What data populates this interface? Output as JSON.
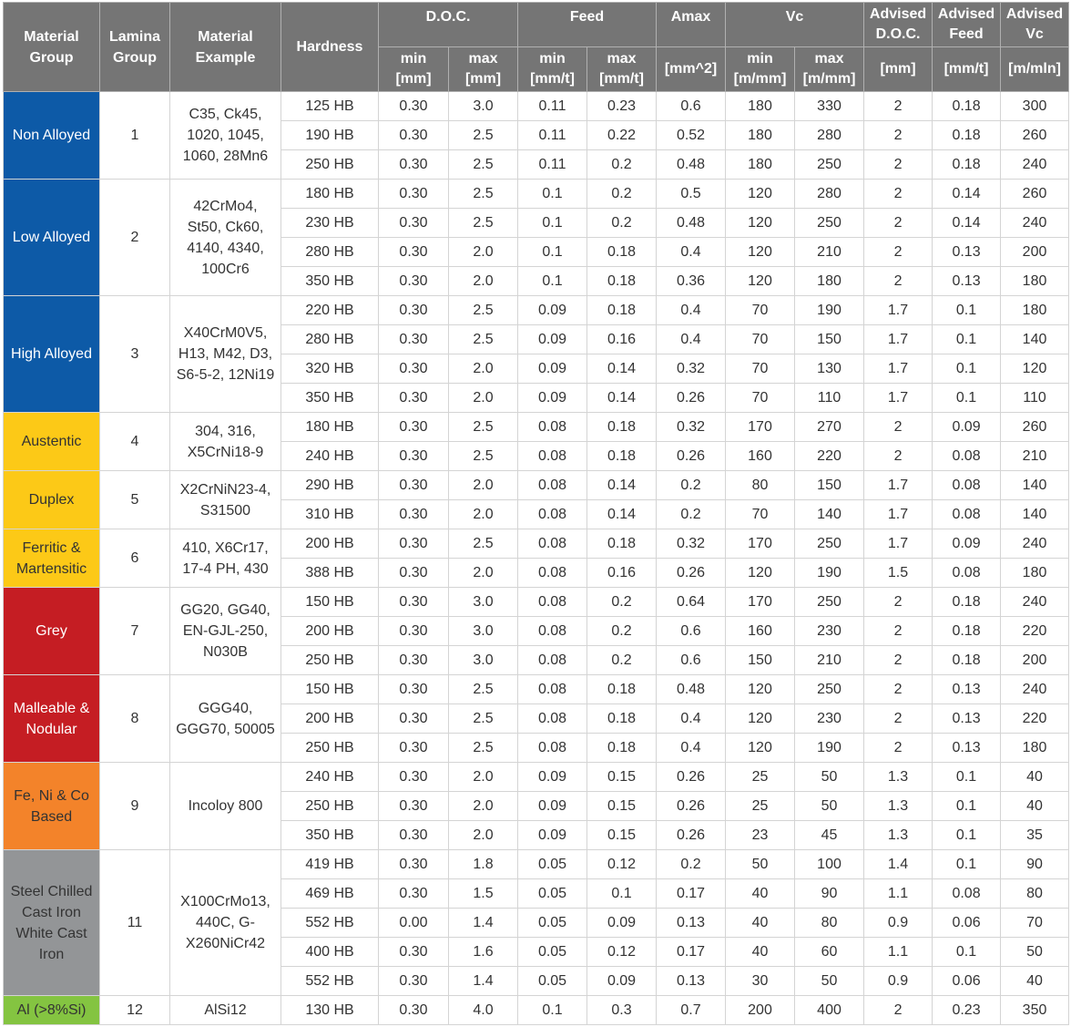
{
  "header": {
    "material_group": [
      "Material",
      "Group"
    ],
    "lamina_group": [
      "Lamina",
      "Group"
    ],
    "material_example": [
      "Material",
      "Example"
    ],
    "hardness": "Hardness",
    "doc": "D.O.C.",
    "feed": "Feed",
    "amax": "Amax",
    "vc": "Vc",
    "advised_doc": [
      "Advised",
      "D.O.C."
    ],
    "advised_feed": [
      "Advised",
      "Feed"
    ],
    "advised_vc": [
      "Advised",
      "Vc"
    ],
    "doc_min": [
      "min",
      "[mm]"
    ],
    "doc_max": [
      "max",
      "[mm]"
    ],
    "feed_min": [
      "min",
      "[mm/t]"
    ],
    "feed_max": [
      "max",
      "[mm/t]"
    ],
    "amax_unit": "[mm^2]",
    "vc_min": [
      "min",
      "[m/mm]"
    ],
    "vc_max": [
      "max",
      "[m/mm]"
    ],
    "advised_doc_unit": "[mm]",
    "advised_feed_unit": "[mm/t]",
    "advised_vc_unit": "[m/mln]"
  },
  "groups": [
    {
      "name": [
        "Non Alloyed"
      ],
      "color": "#0d5aa7",
      "text_color": "#ffffff",
      "lamina": "1",
      "example": [
        "C35, Ck45,",
        "1020, 1045,",
        "1060, 28Mn6"
      ],
      "rows": [
        [
          "125 HB",
          "0.30",
          "3.0",
          "0.11",
          "0.23",
          "0.6",
          "180",
          "330",
          "2",
          "0.18",
          "300"
        ],
        [
          "190 HB",
          "0.30",
          "2.5",
          "0.11",
          "0.22",
          "0.52",
          "180",
          "280",
          "2",
          "0.18",
          "260"
        ],
        [
          "250 HB",
          "0.30",
          "2.5",
          "0.11",
          "0.2",
          "0.48",
          "180",
          "250",
          "2",
          "0.18",
          "240"
        ]
      ]
    },
    {
      "name": [
        "Low Alloyed"
      ],
      "color": "#0d5aa7",
      "text_color": "#ffffff",
      "lamina": "2",
      "example": [
        "42CrMo4,",
        "St50, Ck60,",
        "4140, 4340,",
        "100Cr6"
      ],
      "rows": [
        [
          "180 HB",
          "0.30",
          "2.5",
          "0.1",
          "0.2",
          "0.5",
          "120",
          "280",
          "2",
          "0.14",
          "260"
        ],
        [
          "230 HB",
          "0.30",
          "2.5",
          "0.1",
          "0.2",
          "0.48",
          "120",
          "250",
          "2",
          "0.14",
          "240"
        ],
        [
          "280 HB",
          "0.30",
          "2.0",
          "0.1",
          "0.18",
          "0.4",
          "120",
          "210",
          "2",
          "0.13",
          "200"
        ],
        [
          "350 HB",
          "0.30",
          "2.0",
          "0.1",
          "0.18",
          "0.36",
          "120",
          "180",
          "2",
          "0.13",
          "180"
        ]
      ]
    },
    {
      "name": [
        "High Alloyed"
      ],
      "color": "#0d5aa7",
      "text_color": "#ffffff",
      "lamina": "3",
      "example": [
        "X40CrM0V5,",
        "H13, M42, D3,",
        "S6-5-2, 12Ni19"
      ],
      "rows": [
        [
          "220 HB",
          "0.30",
          "2.5",
          "0.09",
          "0.18",
          "0.4",
          "70",
          "190",
          "1.7",
          "0.1",
          "180"
        ],
        [
          "280 HB",
          "0.30",
          "2.5",
          "0.09",
          "0.16",
          "0.4",
          "70",
          "150",
          "1.7",
          "0.1",
          "140"
        ],
        [
          "320 HB",
          "0.30",
          "2.0",
          "0.09",
          "0.14",
          "0.32",
          "70",
          "130",
          "1.7",
          "0.1",
          "120"
        ],
        [
          "350 HB",
          "0.30",
          "2.0",
          "0.09",
          "0.14",
          "0.26",
          "70",
          "110",
          "1.7",
          "0.1",
          "110"
        ]
      ]
    },
    {
      "name": [
        "Austentic"
      ],
      "color": "#fcc917",
      "text_color": "#333333",
      "lamina": "4",
      "example": [
        "304, 316,",
        "X5CrNi18-9"
      ],
      "rows": [
        [
          "180 HB",
          "0.30",
          "2.5",
          "0.08",
          "0.18",
          "0.32",
          "170",
          "270",
          "2",
          "0.09",
          "260"
        ],
        [
          "240 HB",
          "0.30",
          "2.5",
          "0.08",
          "0.18",
          "0.26",
          "160",
          "220",
          "2",
          "0.08",
          "210"
        ]
      ]
    },
    {
      "name": [
        "Duplex"
      ],
      "color": "#fcc917",
      "text_color": "#333333",
      "lamina": "5",
      "example": [
        "X2CrNiN23-4,",
        "S31500"
      ],
      "rows": [
        [
          "290 HB",
          "0.30",
          "2.0",
          "0.08",
          "0.14",
          "0.2",
          "80",
          "150",
          "1.7",
          "0.08",
          "140"
        ],
        [
          "310 HB",
          "0.30",
          "2.0",
          "0.08",
          "0.14",
          "0.2",
          "70",
          "140",
          "1.7",
          "0.08",
          "140"
        ]
      ]
    },
    {
      "name": [
        "Ferritic &",
        "Martensitic"
      ],
      "color": "#fcc917",
      "text_color": "#333333",
      "lamina": "6",
      "example": [
        "410, X6Cr17,",
        "17-4 PH, 430"
      ],
      "rows": [
        [
          "200 HB",
          "0.30",
          "2.5",
          "0.08",
          "0.18",
          "0.32",
          "170",
          "250",
          "1.7",
          "0.09",
          "240"
        ],
        [
          "388 HB",
          "0.30",
          "2.0",
          "0.08",
          "0.16",
          "0.26",
          "120",
          "190",
          "1.5",
          "0.08",
          "180"
        ]
      ]
    },
    {
      "name": [
        "Grey"
      ],
      "color": "#c51d23",
      "text_color": "#ffffff",
      "lamina": "7",
      "example": [
        "GG20, GG40,",
        "EN-GJL-250,",
        "N030B"
      ],
      "rows": [
        [
          "150 HB",
          "0.30",
          "3.0",
          "0.08",
          "0.2",
          "0.64",
          "170",
          "250",
          "2",
          "0.18",
          "240"
        ],
        [
          "200 HB",
          "0.30",
          "3.0",
          "0.08",
          "0.2",
          "0.6",
          "160",
          "230",
          "2",
          "0.18",
          "220"
        ],
        [
          "250 HB",
          "0.30",
          "3.0",
          "0.08",
          "0.2",
          "0.6",
          "150",
          "210",
          "2",
          "0.18",
          "200"
        ]
      ]
    },
    {
      "name": [
        "Malleable &",
        "Nodular"
      ],
      "color": "#c51d23",
      "text_color": "#ffffff",
      "lamina": "8",
      "example": [
        "GGG40,",
        "GGG70, 50005"
      ],
      "rows": [
        [
          "150 HB",
          "0.30",
          "2.5",
          "0.08",
          "0.18",
          "0.48",
          "120",
          "250",
          "2",
          "0.13",
          "240"
        ],
        [
          "200 HB",
          "0.30",
          "2.5",
          "0.08",
          "0.18",
          "0.4",
          "120",
          "230",
          "2",
          "0.13",
          "220"
        ],
        [
          "250 HB",
          "0.30",
          "2.5",
          "0.08",
          "0.18",
          "0.4",
          "120",
          "190",
          "2",
          "0.13",
          "180"
        ]
      ]
    },
    {
      "name": [
        "Fe, Ni & Co",
        "Based"
      ],
      "color": "#f3832a",
      "text_color": "#333333",
      "lamina": "9",
      "example": [
        "Incoloy 800"
      ],
      "rows": [
        [
          "240 HB",
          "0.30",
          "2.0",
          "0.09",
          "0.15",
          "0.26",
          "25",
          "50",
          "1.3",
          "0.1",
          "40"
        ],
        [
          "250 HB",
          "0.30",
          "2.0",
          "0.09",
          "0.15",
          "0.26",
          "25",
          "50",
          "1.3",
          "0.1",
          "40"
        ],
        [
          "350 HB",
          "0.30",
          "2.0",
          "0.09",
          "0.15",
          "0.26",
          "23",
          "45",
          "1.3",
          "0.1",
          "35"
        ]
      ]
    },
    {
      "name": [
        "Steel Chilled",
        "Cast Iron",
        "White Cast",
        "Iron"
      ],
      "color": "#939597",
      "text_color": "#333333",
      "lamina": "11",
      "example": [
        "X100CrMo13,",
        "440C, G-",
        "X260NiCr42"
      ],
      "rows": [
        [
          "419 HB",
          "0.30",
          "1.8",
          "0.05",
          "0.12",
          "0.2",
          "50",
          "100",
          "1.4",
          "0.1",
          "90"
        ],
        [
          "469 HB",
          "0.30",
          "1.5",
          "0.05",
          "0.1",
          "0.17",
          "40",
          "90",
          "1.1",
          "0.08",
          "80"
        ],
        [
          "552 HB",
          "0.00",
          "1.4",
          "0.05",
          "0.09",
          "0.13",
          "40",
          "80",
          "0.9",
          "0.06",
          "70"
        ],
        [
          "400 HB",
          "0.30",
          "1.6",
          "0.05",
          "0.12",
          "0.17",
          "40",
          "60",
          "1.1",
          "0.1",
          "50"
        ],
        [
          "552 HB",
          "0.30",
          "1.4",
          "0.05",
          "0.09",
          "0.13",
          "30",
          "50",
          "0.9",
          "0.06",
          "40"
        ]
      ]
    },
    {
      "name": [
        "Al (>8%Si)"
      ],
      "color": "#84c441",
      "text_color": "#333333",
      "lamina": "12",
      "example": [
        "AlSi12"
      ],
      "rows": [
        [
          "130 HB",
          "0.30",
          "4.0",
          "0.1",
          "0.3",
          "0.7",
          "200",
          "400",
          "2",
          "0.23",
          "350"
        ]
      ]
    }
  ]
}
